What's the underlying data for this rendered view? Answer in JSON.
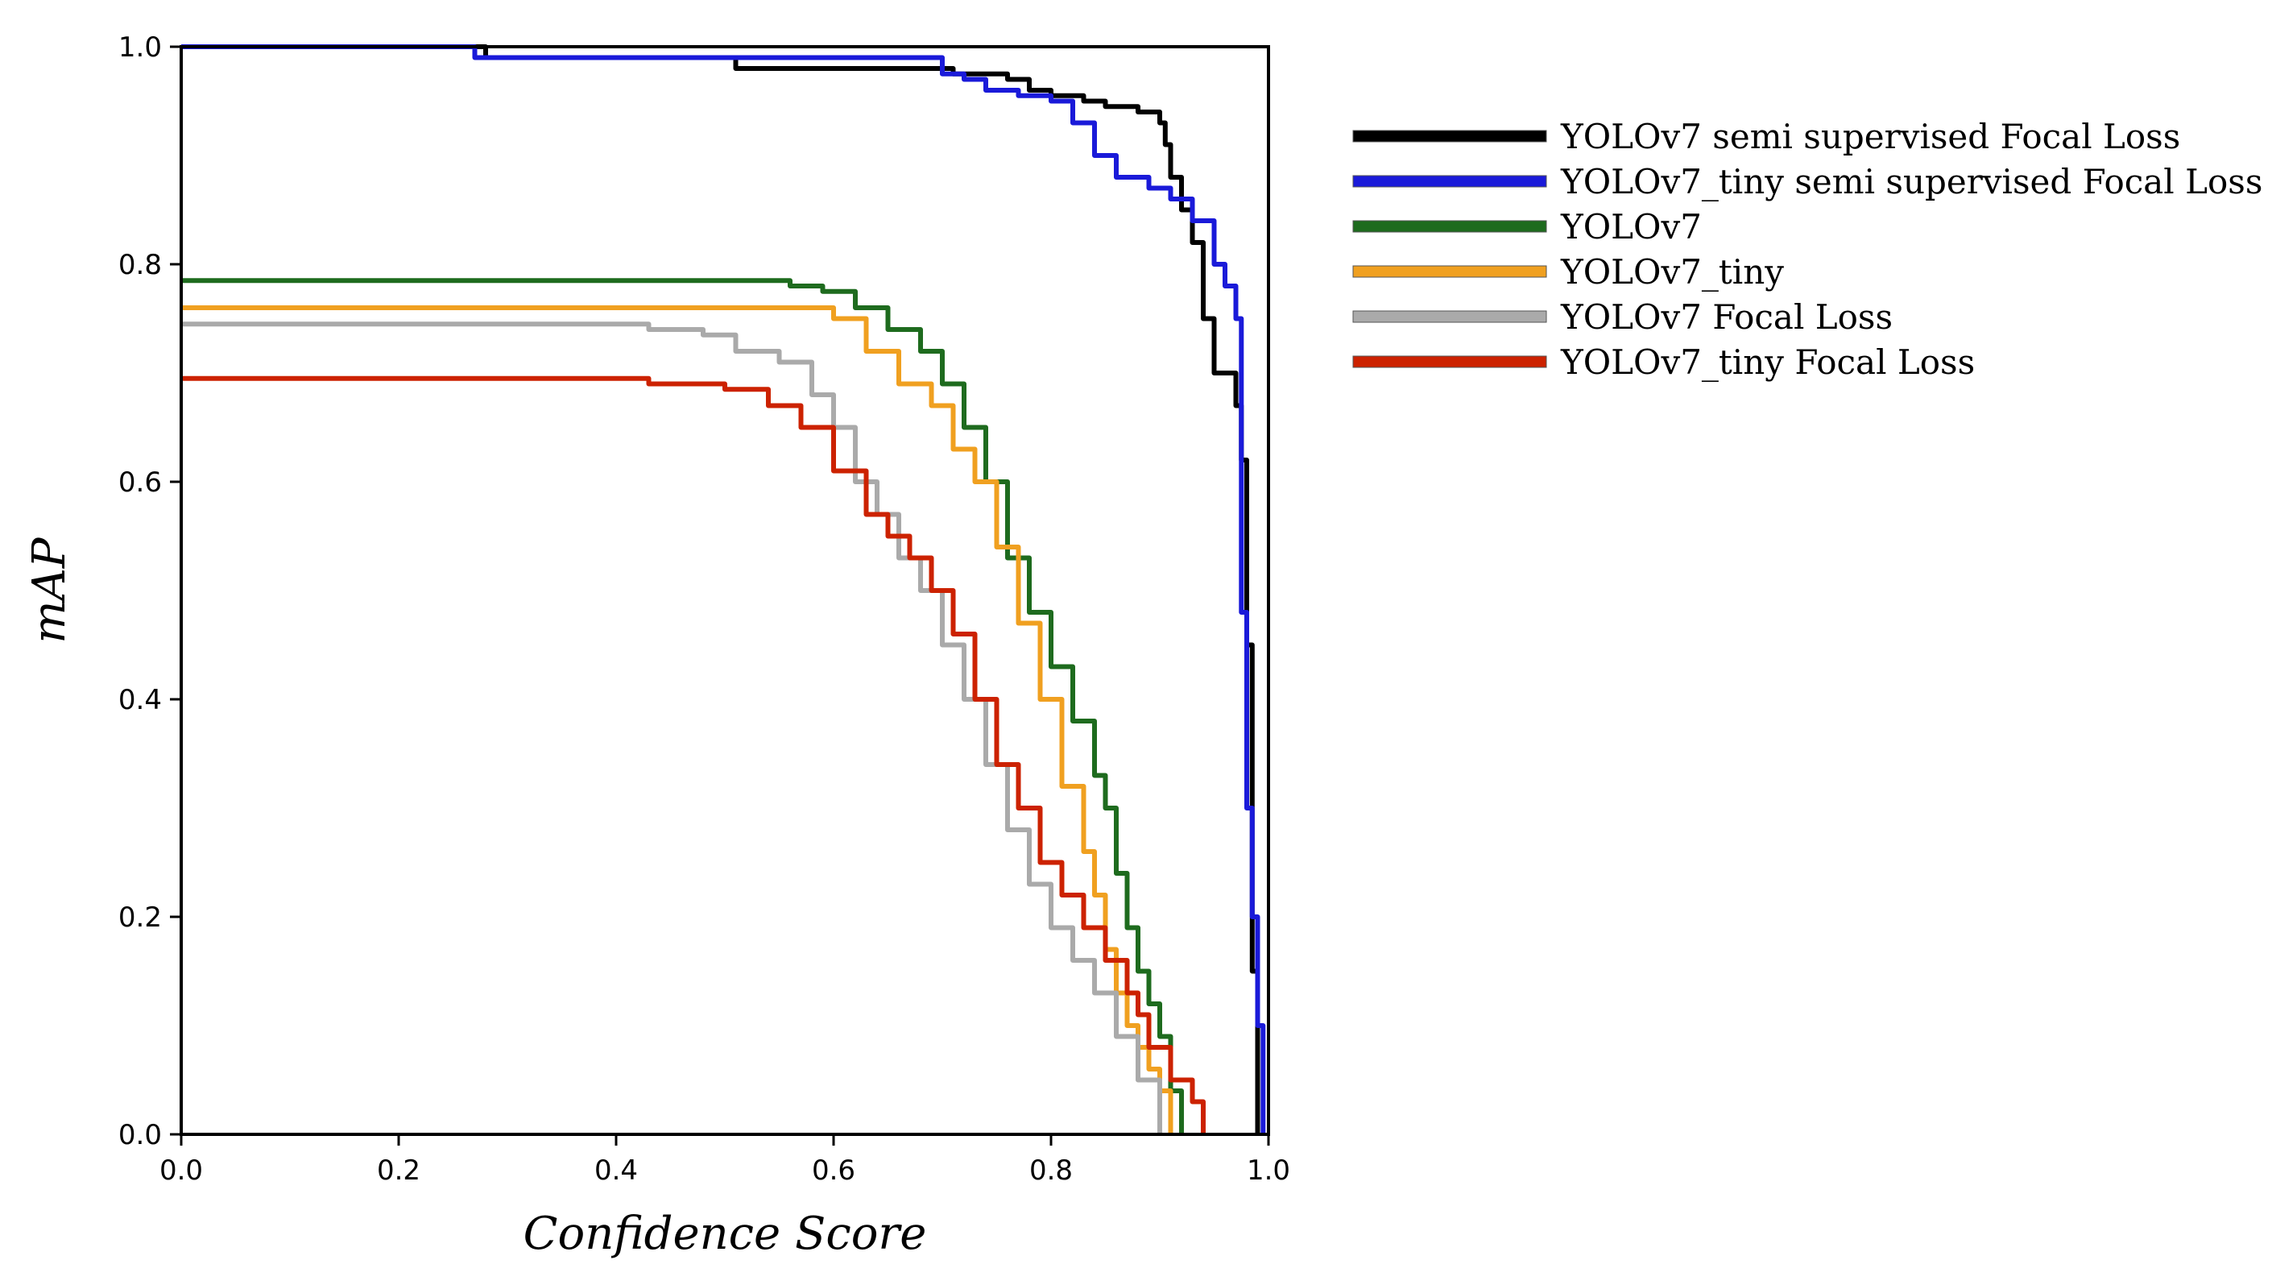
{
  "chart_data": {
    "type": "line",
    "title": "",
    "xlabel": "Confidence Score",
    "ylabel": "mAP",
    "xlim": [
      0.0,
      1.0
    ],
    "ylim": [
      0.0,
      1.0
    ],
    "xticks": [
      "0.0",
      "0.2",
      "0.4",
      "0.6",
      "0.8",
      "1.0"
    ],
    "yticks": [
      "0.0",
      "0.2",
      "0.4",
      "0.6",
      "0.8",
      "1.0"
    ],
    "grid": false,
    "legend_position": "outside-right",
    "series": [
      {
        "name": "YOLOv7 semi supervised Focal Loss",
        "color": "#000000",
        "points": [
          [
            0.0,
            1.0
          ],
          [
            0.27,
            1.0
          ],
          [
            0.28,
            0.99
          ],
          [
            0.5,
            0.99
          ],
          [
            0.51,
            0.98
          ],
          [
            0.7,
            0.98
          ],
          [
            0.71,
            0.975
          ],
          [
            0.76,
            0.97
          ],
          [
            0.78,
            0.96
          ],
          [
            0.8,
            0.955
          ],
          [
            0.83,
            0.95
          ],
          [
            0.85,
            0.945
          ],
          [
            0.88,
            0.94
          ],
          [
            0.9,
            0.93
          ],
          [
            0.905,
            0.91
          ],
          [
            0.91,
            0.88
          ],
          [
            0.92,
            0.85
          ],
          [
            0.93,
            0.82
          ],
          [
            0.94,
            0.75
          ],
          [
            0.95,
            0.7
          ],
          [
            0.97,
            0.67
          ],
          [
            0.975,
            0.62
          ],
          [
            0.98,
            0.45
          ],
          [
            0.985,
            0.15
          ],
          [
            0.99,
            0.0
          ]
        ]
      },
      {
        "name": "YOLOv7_tiny semi supervised Focal Loss",
        "color": "#1a1ad9",
        "points": [
          [
            0.0,
            1.0
          ],
          [
            0.26,
            1.0
          ],
          [
            0.27,
            0.99
          ],
          [
            0.69,
            0.99
          ],
          [
            0.7,
            0.975
          ],
          [
            0.72,
            0.97
          ],
          [
            0.74,
            0.96
          ],
          [
            0.77,
            0.955
          ],
          [
            0.8,
            0.95
          ],
          [
            0.82,
            0.93
          ],
          [
            0.84,
            0.9
          ],
          [
            0.86,
            0.88
          ],
          [
            0.89,
            0.87
          ],
          [
            0.91,
            0.86
          ],
          [
            0.93,
            0.84
          ],
          [
            0.95,
            0.8
          ],
          [
            0.96,
            0.78
          ],
          [
            0.97,
            0.75
          ],
          [
            0.975,
            0.48
          ],
          [
            0.98,
            0.3
          ],
          [
            0.985,
            0.2
          ],
          [
            0.99,
            0.1
          ],
          [
            0.995,
            0.0
          ]
        ]
      },
      {
        "name": "YOLOv7",
        "color": "#1e6b1e",
        "points": [
          [
            0.0,
            0.785
          ],
          [
            0.5,
            0.785
          ],
          [
            0.56,
            0.78
          ],
          [
            0.59,
            0.775
          ],
          [
            0.62,
            0.76
          ],
          [
            0.65,
            0.74
          ],
          [
            0.68,
            0.72
          ],
          [
            0.7,
            0.69
          ],
          [
            0.72,
            0.65
          ],
          [
            0.74,
            0.6
          ],
          [
            0.76,
            0.53
          ],
          [
            0.78,
            0.48
          ],
          [
            0.8,
            0.43
          ],
          [
            0.82,
            0.38
          ],
          [
            0.84,
            0.33
          ],
          [
            0.85,
            0.3
          ],
          [
            0.86,
            0.24
          ],
          [
            0.87,
            0.19
          ],
          [
            0.88,
            0.15
          ],
          [
            0.89,
            0.12
          ],
          [
            0.9,
            0.09
          ],
          [
            0.91,
            0.04
          ],
          [
            0.92,
            0.0
          ]
        ]
      },
      {
        "name": "YOLOv7_tiny",
        "color": "#f0a020",
        "points": [
          [
            0.0,
            0.76
          ],
          [
            0.57,
            0.76
          ],
          [
            0.6,
            0.75
          ],
          [
            0.63,
            0.72
          ],
          [
            0.66,
            0.69
          ],
          [
            0.69,
            0.67
          ],
          [
            0.71,
            0.63
          ],
          [
            0.73,
            0.6
          ],
          [
            0.75,
            0.54
          ],
          [
            0.77,
            0.47
          ],
          [
            0.79,
            0.4
          ],
          [
            0.81,
            0.32
          ],
          [
            0.83,
            0.26
          ],
          [
            0.84,
            0.22
          ],
          [
            0.85,
            0.17
          ],
          [
            0.86,
            0.13
          ],
          [
            0.87,
            0.1
          ],
          [
            0.88,
            0.08
          ],
          [
            0.89,
            0.06
          ],
          [
            0.9,
            0.04
          ],
          [
            0.91,
            0.0
          ]
        ]
      },
      {
        "name": "YOLOv7 Focal Loss",
        "color": "#aaaaaa",
        "points": [
          [
            0.0,
            0.745
          ],
          [
            0.42,
            0.745
          ],
          [
            0.43,
            0.74
          ],
          [
            0.48,
            0.735
          ],
          [
            0.51,
            0.72
          ],
          [
            0.55,
            0.71
          ],
          [
            0.58,
            0.68
          ],
          [
            0.6,
            0.65
          ],
          [
            0.62,
            0.6
          ],
          [
            0.64,
            0.57
          ],
          [
            0.66,
            0.53
          ],
          [
            0.68,
            0.5
          ],
          [
            0.7,
            0.45
          ],
          [
            0.72,
            0.4
          ],
          [
            0.74,
            0.34
          ],
          [
            0.76,
            0.28
          ],
          [
            0.78,
            0.23
          ],
          [
            0.8,
            0.19
          ],
          [
            0.82,
            0.16
          ],
          [
            0.84,
            0.13
          ],
          [
            0.86,
            0.09
          ],
          [
            0.88,
            0.05
          ],
          [
            0.9,
            0.0
          ]
        ]
      },
      {
        "name": "YOLOv7_tiny Focal Loss",
        "color": "#cc2200",
        "points": [
          [
            0.0,
            0.695
          ],
          [
            0.42,
            0.695
          ],
          [
            0.43,
            0.69
          ],
          [
            0.5,
            0.685
          ],
          [
            0.54,
            0.67
          ],
          [
            0.57,
            0.65
          ],
          [
            0.6,
            0.61
          ],
          [
            0.63,
            0.57
          ],
          [
            0.65,
            0.55
          ],
          [
            0.67,
            0.53
          ],
          [
            0.69,
            0.5
          ],
          [
            0.71,
            0.46
          ],
          [
            0.73,
            0.4
          ],
          [
            0.75,
            0.34
          ],
          [
            0.77,
            0.3
          ],
          [
            0.79,
            0.25
          ],
          [
            0.81,
            0.22
          ],
          [
            0.83,
            0.19
          ],
          [
            0.85,
            0.16
          ],
          [
            0.87,
            0.13
          ],
          [
            0.88,
            0.11
          ],
          [
            0.89,
            0.08
          ],
          [
            0.91,
            0.05
          ],
          [
            0.93,
            0.03
          ],
          [
            0.94,
            0.0
          ]
        ]
      }
    ]
  }
}
